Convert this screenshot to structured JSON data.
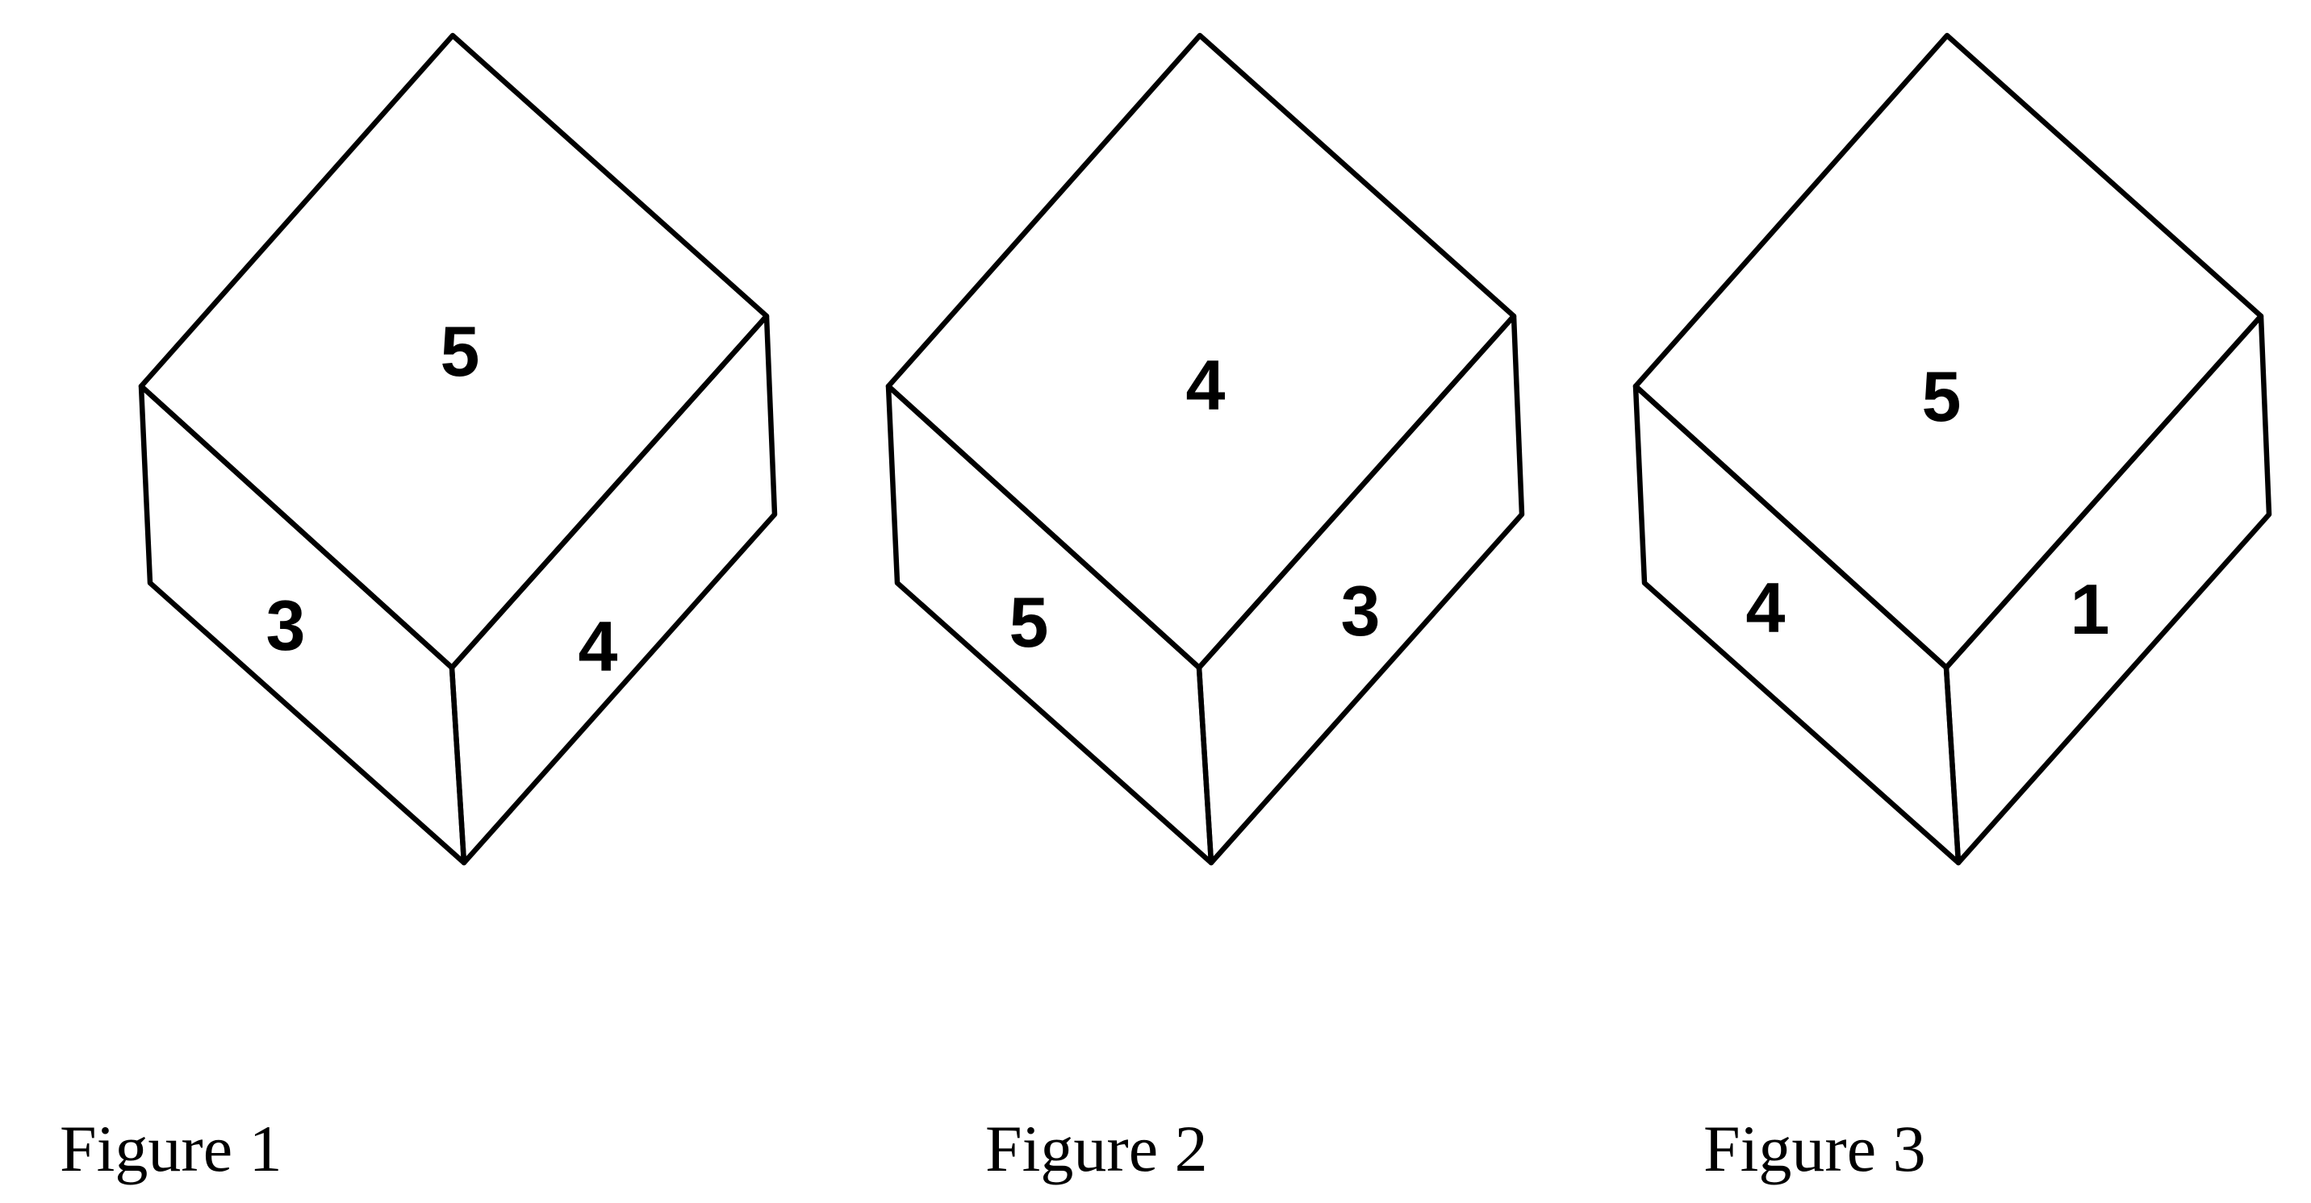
{
  "figures": [
    {
      "caption": "Figure 1",
      "faces": {
        "top": "5",
        "left": "3",
        "right": "4"
      }
    },
    {
      "caption": "Figure 2",
      "faces": {
        "top": "4",
        "left": "5",
        "right": "3"
      }
    },
    {
      "caption": "Figure 3",
      "faces": {
        "top": "5",
        "left": "4",
        "right": "1"
      }
    }
  ]
}
